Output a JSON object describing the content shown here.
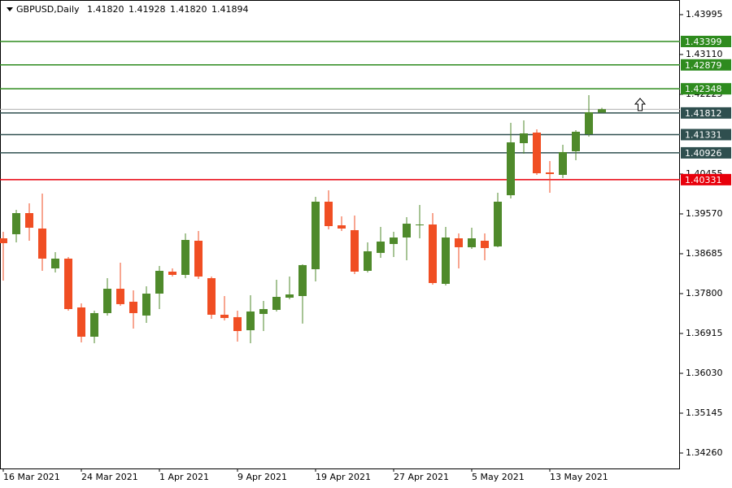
{
  "header": {
    "symbol": "GBPUSD,Daily",
    "ohlc": [
      "1.41820",
      "1.41928",
      "1.41820",
      "1.41894"
    ]
  },
  "chart_data": {
    "type": "candlestick",
    "x": [
      "16 Mar 2021",
      null,
      null,
      null,
      null,
      null,
      "24 Mar 2021",
      null,
      null,
      null,
      null,
      null,
      "1 Apr 2021",
      null,
      null,
      null,
      null,
      null,
      "9 Apr 2021",
      null,
      null,
      null,
      null,
      null,
      "19 Apr 2021",
      null,
      null,
      null,
      null,
      null,
      "27 Apr 2021",
      null,
      null,
      null,
      null,
      null,
      "5 May 2021",
      null,
      null,
      null,
      null,
      null,
      "13 May 2021",
      null,
      null,
      null,
      null
    ],
    "open": [
      1.39028,
      1.39119,
      1.39588,
      1.39245,
      1.3836,
      1.38577,
      1.37493,
      1.36843,
      1.37367,
      1.37908,
      1.3762,
      1.37313,
      1.378,
      1.38288,
      1.38216,
      1.38974,
      1.38143,
      1.37331,
      1.37277,
      1.36987,
      1.37349,
      1.37439,
      1.3771,
      1.37746,
      1.38342,
      1.39841,
      1.39317,
      1.39209,
      1.38306,
      1.38704,
      1.38902,
      1.39046,
      1.39317,
      1.39335,
      1.38017,
      1.39028,
      1.3883,
      1.38974,
      1.38848,
      1.39985,
      1.41141,
      1.41376,
      1.40491,
      1.40437,
      1.40961,
      1.4134,
      1.4182
    ],
    "high": [
      1.39173,
      1.3966,
      1.39805,
      1.40022,
      1.38722,
      1.38613,
      1.37584,
      1.37421,
      1.38143,
      1.38487,
      1.37872,
      1.37963,
      1.38414,
      1.3836,
      1.39137,
      1.39191,
      1.38179,
      1.37746,
      1.37421,
      1.37764,
      1.37638,
      1.38107,
      1.38179,
      1.38451,
      1.39949,
      1.40094,
      1.39516,
      1.39534,
      1.38938,
      1.39281,
      1.39173,
      1.39498,
      1.39769,
      1.39588,
      1.39281,
      1.39137,
      1.39263,
      1.39137,
      1.4004,
      1.41593,
      1.41647,
      1.41448,
      1.40744,
      1.41105,
      1.4143,
      1.42207,
      1.41928
    ],
    "low": [
      1.38089,
      1.38938,
      1.38974,
      1.38306,
      1.3827,
      1.37421,
      1.36717,
      1.36699,
      1.37313,
      1.3753,
      1.37023,
      1.37151,
      1.37457,
      1.38179,
      1.38143,
      1.38125,
      1.37241,
      1.37205,
      1.36735,
      1.36699,
      1.36969,
      1.37403,
      1.37674,
      1.37133,
      1.38071,
      1.39227,
      1.39191,
      1.38234,
      1.3827,
      1.38595,
      1.38613,
      1.38541,
      1.39028,
      1.37999,
      1.37981,
      1.3836,
      1.38794,
      1.38541,
      1.3883,
      1.39913,
      1.40907,
      1.40437,
      1.4004,
      1.40365,
      1.40762,
      1.41286,
      1.4182
    ],
    "close": [
      1.3892,
      1.39588,
      1.39263,
      1.38577,
      1.38577,
      1.37457,
      1.36843,
      1.37367,
      1.37908,
      1.37566,
      1.37367,
      1.378,
      1.38306,
      1.38216,
      1.38992,
      1.38179,
      1.37331,
      1.37259,
      1.36969,
      1.37403,
      1.37457,
      1.37728,
      1.37782,
      1.38433,
      1.39841,
      1.39299,
      1.39245,
      1.38288,
      1.3874,
      1.38956,
      1.39046,
      1.39353,
      1.39335,
      1.38035,
      1.39046,
      1.3883,
      1.39028,
      1.38812,
      1.39841,
      1.41159,
      1.41358,
      1.40473,
      1.40455,
      1.40943,
      1.41394,
      1.41828,
      1.41894
    ],
    "up_color": "#4f8a2b",
    "down_color": "#f04e23",
    "ylim": [
      1.33917,
      1.4432
    ],
    "yticks": [
      1.43995,
      {
        "value": 1.4311,
        "label": "1.43110"
      },
      1.42225,
      1.40455,
      {
        "value": 1.3957,
        "label": "1.39570"
      },
      1.38685,
      {
        "value": 1.378,
        "label": "1.37800"
      },
      1.36915,
      {
        "value": 1.3603,
        "label": "1.36030"
      },
      1.35145,
      {
        "value": 1.3426,
        "label": "1.34260"
      }
    ],
    "levels": [
      {
        "value": 1.43399,
        "color": "#2e8b1e"
      },
      {
        "value": 1.42879,
        "color": "#2e8b1e"
      },
      {
        "value": 1.42348,
        "color": "#2e8b1e"
      },
      {
        "value": 1.41812,
        "color": "#2f4f4f"
      },
      {
        "value": 1.41331,
        "color": "#2f4f4f"
      },
      {
        "value": 1.40926,
        "color": "#2f4f4f"
      },
      {
        "value": 1.40331,
        "color": "#e8000b"
      }
    ]
  }
}
